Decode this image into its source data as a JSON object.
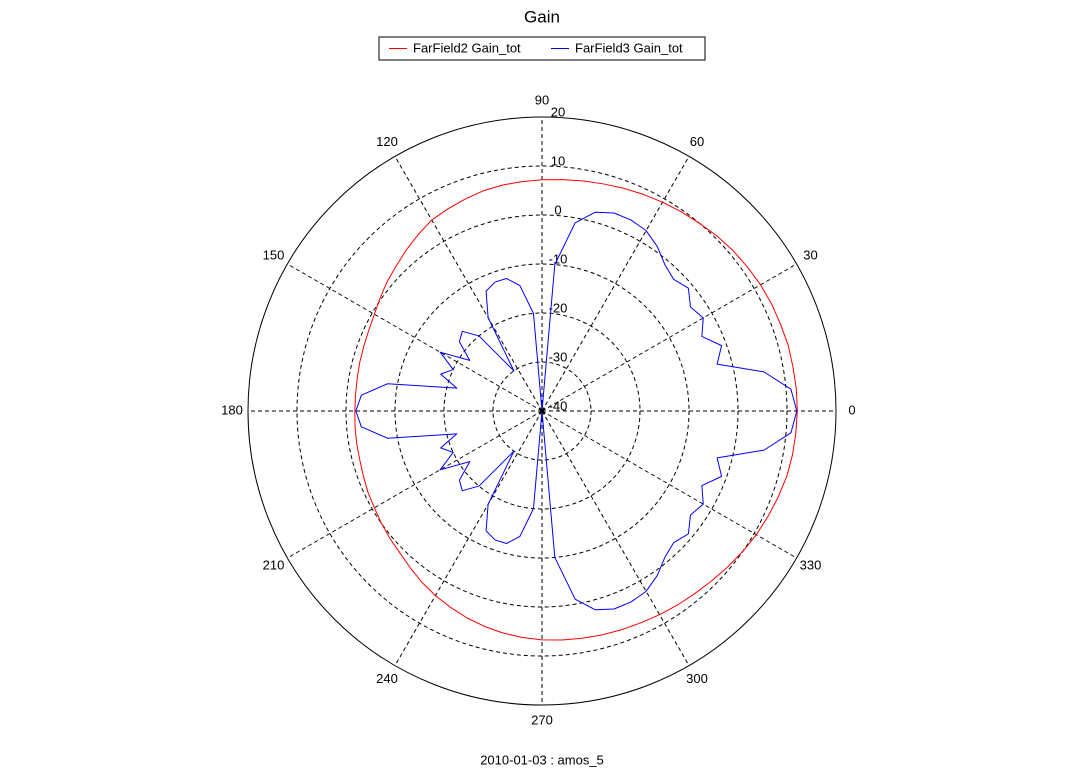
{
  "chart_data": {
    "type": "polar",
    "title": "Gain",
    "footer": "2010-01-03 : amos_5",
    "rlim": [
      -40,
      20
    ],
    "rticks": [
      -40,
      -30,
      -20,
      -10,
      0,
      10,
      20
    ],
    "thetaticks": [
      0,
      30,
      60,
      90,
      120,
      150,
      180,
      210,
      240,
      270,
      300,
      330
    ],
    "grid": true,
    "x": [
      0,
      5,
      10,
      15,
      20,
      25,
      30,
      35,
      40,
      45,
      50,
      55,
      60,
      65,
      70,
      75,
      80,
      85,
      90,
      95,
      100,
      105,
      110,
      115,
      120,
      125,
      130,
      135,
      140,
      145,
      150,
      155,
      160,
      165,
      170,
      175,
      180,
      185,
      190,
      195,
      200,
      205,
      210,
      215,
      220,
      225,
      230,
      235,
      240,
      245,
      250,
      255,
      260,
      265,
      270,
      275,
      280,
      285,
      290,
      295,
      300,
      305,
      310,
      315,
      320,
      325,
      330,
      335,
      340,
      345,
      350,
      355,
      360
    ],
    "series": [
      {
        "name": "FarField2 Gain_tot",
        "color": "#ff0000",
        "values": [
          12.1,
          12.1,
          12,
          12,
          11.8,
          11.7,
          11.5,
          11.2,
          10.9,
          10.5,
          10,
          9.6,
          9.2,
          8.8,
          8.4,
          8,
          7.7,
          7.4,
          7.2,
          7,
          6.8,
          6.5,
          6,
          5.5,
          5,
          4,
          3,
          2,
          1.2,
          0.3,
          -0.5,
          -1,
          -1.3,
          -1.5,
          -1.7,
          -1.8,
          -1.8,
          -1.7,
          -1.6,
          -1.5,
          -1.2,
          -0.8,
          -0.5,
          0,
          0.5,
          1,
          1.8,
          2.7,
          3.5,
          4.2,
          4.9,
          5.5,
          6,
          6.4,
          6.7,
          6.9,
          7.1,
          7.3,
          7.5,
          7.7,
          8,
          8.3,
          8.6,
          9,
          9.5,
          10,
          10.5,
          10.9,
          11.3,
          11.7,
          11.9,
          12,
          12.1
        ]
      },
      {
        "name": "FarField3 Gain_tot",
        "color": "#0000ff",
        "values": [
          12,
          11,
          6,
          -3,
          -1,
          -4,
          -2,
          -3,
          -1,
          -2,
          -1,
          1,
          2.5,
          3,
          3,
          2,
          -1,
          -10,
          -40,
          -20,
          -14,
          -12,
          -12,
          -13,
          -18,
          -30,
          -20,
          -17,
          -18,
          -22,
          -16,
          -20,
          -18,
          -22,
          -8,
          -3,
          -2,
          -3,
          -8,
          -22,
          -18,
          -20,
          -16,
          -22,
          -18,
          -17,
          -20,
          -30,
          -18,
          -13,
          -12,
          -12,
          -14,
          -20,
          -40,
          -10,
          -1,
          2,
          3,
          3,
          2.5,
          1,
          -1,
          -2,
          -1,
          -3,
          -2,
          -4,
          -1,
          -3,
          6,
          11,
          12
        ]
      }
    ]
  }
}
